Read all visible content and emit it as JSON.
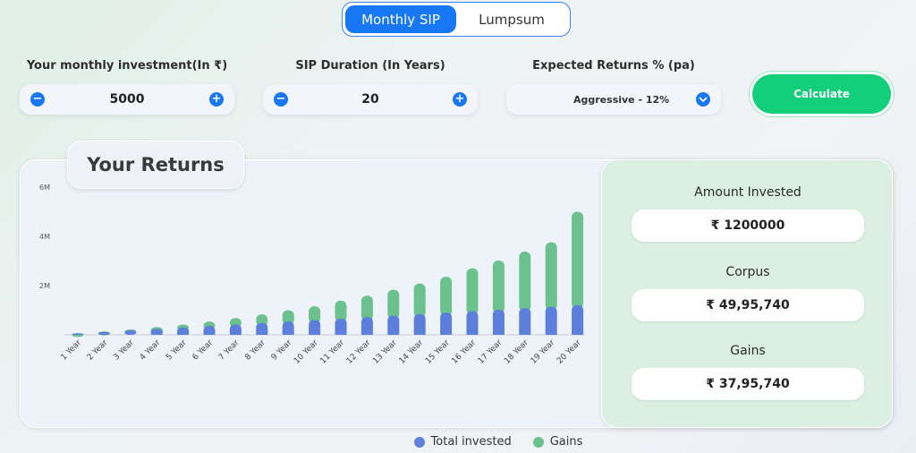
{
  "mode_toggle": {
    "options": [
      "Monthly SIP",
      "Lumpsum"
    ],
    "active": "Monthly SIP"
  },
  "inputs": {
    "monthly_investment": {
      "label": "Your monthly investment(In ₹)",
      "value": "5000",
      "minus": "−",
      "plus": "+"
    },
    "duration": {
      "label": "SIP Duration (In Years)",
      "value": "20",
      "minus": "−",
      "plus": "+"
    },
    "expected_returns": {
      "label": "Expected Returns % (pa)",
      "value": "Aggressive - 12%"
    }
  },
  "calculate_label": "Calculate",
  "returns_title": "Your Returns",
  "summary": {
    "amount_invested_label": "Amount Invested",
    "amount_invested_value": "₹ 1200000",
    "corpus_label": "Corpus",
    "corpus_value": "₹ 49,95,740",
    "gains_label": "Gains",
    "gains_value": "₹ 37,95,740"
  },
  "legend": {
    "invested": "Total invested",
    "gains": "Gains"
  },
  "colors": {
    "primary": "#1877f2",
    "invested": "#5b7fdb",
    "gains": "#6cc28e",
    "calculate": "#14cf7a"
  },
  "chart_data": {
    "type": "bar",
    "stacked": true,
    "categories": [
      "1 Year",
      "2 Year",
      "3 Year",
      "4 Year",
      "5 Year",
      "6 Year",
      "7 Year",
      "8 Year",
      "9 Year",
      "10 Year",
      "11 Year",
      "12 Year",
      "13 Year",
      "14 Year",
      "15 Year",
      "16 Year",
      "17 Year",
      "18 Year",
      "19 Year",
      "20 Year"
    ],
    "series": [
      {
        "name": "Total invested",
        "values": [
          60000,
          120000,
          180000,
          240000,
          300000,
          360000,
          420000,
          480000,
          540000,
          600000,
          660000,
          720000,
          780000,
          840000,
          900000,
          960000,
          1020000,
          1080000,
          1140000,
          1200000
        ]
      },
      {
        "name": "Gains",
        "values": [
          4000,
          18000,
          40000,
          74000,
          120000,
          180000,
          260000,
          350000,
          460000,
          560000,
          730000,
          870000,
          1050000,
          1240000,
          1460000,
          1740000,
          2000000,
          2300000,
          2620000,
          3800000
        ]
      }
    ],
    "ylim": [
      0,
      6000000
    ],
    "yticks": [
      2000000,
      4000000,
      6000000
    ],
    "ytick_labels": [
      "2M",
      "4M",
      "6M"
    ],
    "legend_position": "bottom"
  }
}
